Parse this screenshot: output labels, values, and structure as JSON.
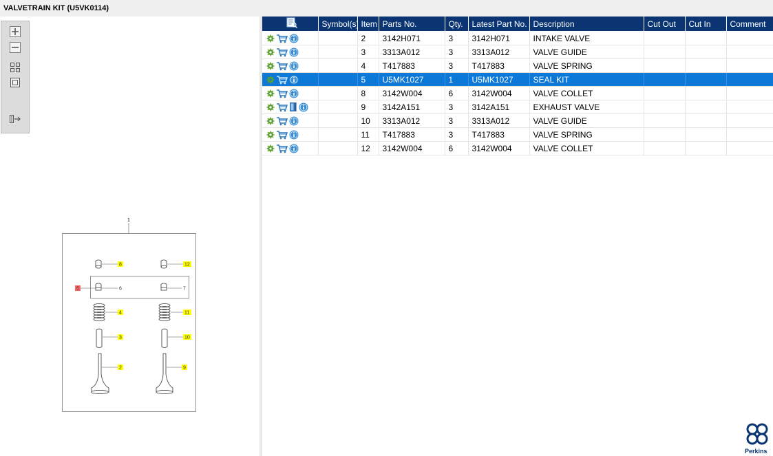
{
  "window": {
    "title": "VALVETRAIN KIT (U5VK0114)"
  },
  "toolbar": {
    "buttons": [
      "zoom-in",
      "zoom-out",
      "fit-all",
      "actual-size",
      "toggle-panel"
    ]
  },
  "diagram": {
    "assembly_callout": "1",
    "callouts": [
      {
        "label": "8",
        "style": "yellow"
      },
      {
        "label": "12",
        "style": "yellow"
      },
      {
        "label": "5",
        "style": "red"
      },
      {
        "label": "6",
        "style": "plain"
      },
      {
        "label": "7",
        "style": "plain"
      },
      {
        "label": "4",
        "style": "yellow"
      },
      {
        "label": "11",
        "style": "yellow"
      },
      {
        "label": "3",
        "style": "yellow"
      },
      {
        "label": "10",
        "style": "yellow"
      },
      {
        "label": "2",
        "style": "yellow"
      },
      {
        "label": "9",
        "style": "yellow"
      }
    ]
  },
  "table": {
    "columns": [
      "",
      "Symbol(s)",
      "Item",
      "Parts No.",
      "Qty.",
      "Latest Part No.",
      "Description",
      "Cut Out",
      "Cut In",
      "Comment"
    ],
    "rows": [
      {
        "item": "2",
        "parts_no": "3142H071",
        "qty": "3",
        "latest": "3142H071",
        "desc": "INTAKE VALVE",
        "selected": false,
        "extra_icon": false
      },
      {
        "item": "3",
        "parts_no": "3313A012",
        "qty": "3",
        "latest": "3313A012",
        "desc": "VALVE GUIDE",
        "selected": false,
        "extra_icon": false
      },
      {
        "item": "4",
        "parts_no": "T417883",
        "qty": "3",
        "latest": "T417883",
        "desc": "VALVE SPRING",
        "selected": false,
        "extra_icon": false
      },
      {
        "item": "5",
        "parts_no": "U5MK1027",
        "qty": "1",
        "latest": "U5MK1027",
        "desc": "SEAL KIT",
        "selected": true,
        "extra_icon": false
      },
      {
        "item": "8",
        "parts_no": "3142W004",
        "qty": "6",
        "latest": "3142W004",
        "desc": "VALVE COLLET",
        "selected": false,
        "extra_icon": false
      },
      {
        "item": "9",
        "parts_no": "3142A151",
        "qty": "3",
        "latest": "3142A151",
        "desc": "EXHAUST VALVE",
        "selected": false,
        "extra_icon": true
      },
      {
        "item": "10",
        "parts_no": "3313A012",
        "qty": "3",
        "latest": "3313A012",
        "desc": "VALVE GUIDE",
        "selected": false,
        "extra_icon": false
      },
      {
        "item": "11",
        "parts_no": "T417883",
        "qty": "3",
        "latest": "T417883",
        "desc": "VALVE SPRING",
        "selected": false,
        "extra_icon": false
      },
      {
        "item": "12",
        "parts_no": "3142W004",
        "qty": "6",
        "latest": "3142W004",
        "desc": "VALVE COLLET",
        "selected": false,
        "extra_icon": false
      }
    ]
  },
  "branding": {
    "logo_text": "Perkins"
  },
  "colors": {
    "header": "#0a3572",
    "selection": "#0c78d7",
    "callout_yellow": "#ffff00",
    "callout_red": "#ff6666",
    "gear": "#5aa02c",
    "cart": "#2a78b8",
    "info": "#3a8fd6"
  }
}
